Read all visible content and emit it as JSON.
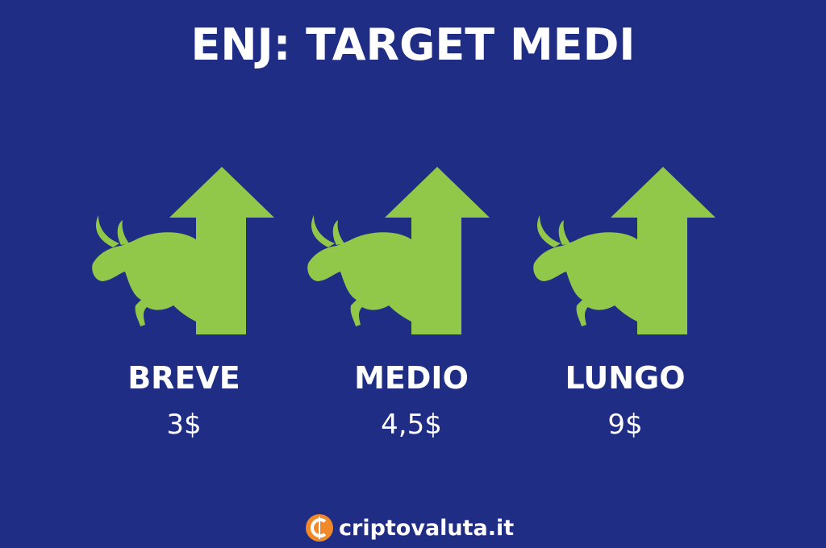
{
  "header": {
    "title": "ENJ: TARGET MEDI"
  },
  "targets": [
    {
      "label": "BREVE",
      "price": "3$"
    },
    {
      "label": "MEDIO",
      "price": "4,5$"
    },
    {
      "label": "LUNGO",
      "price": "9$"
    }
  ],
  "footer": {
    "brand": "criptovaluta.it"
  }
}
